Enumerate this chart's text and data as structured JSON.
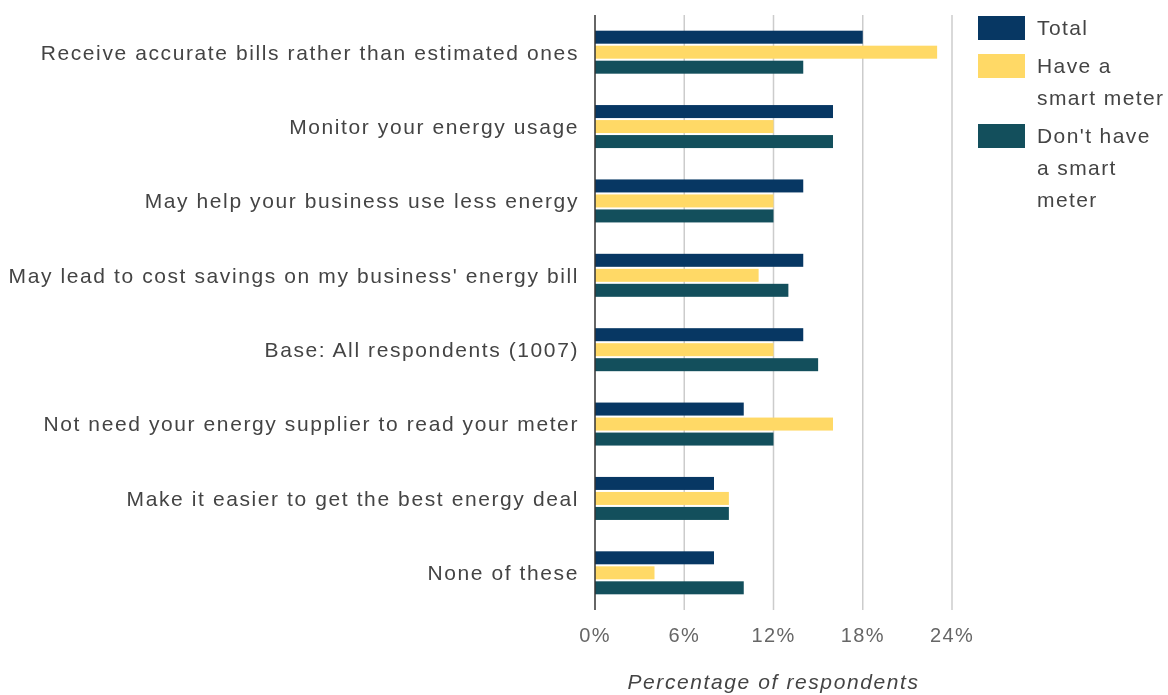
{
  "chart_data": {
    "type": "bar",
    "orientation": "horizontal",
    "categories": [
      "Receive accurate bills rather than estimated ones",
      "Monitor your energy usage",
      "May help your business use less energy",
      "May lead to cost savings on my business' energy bill",
      "Base: All respondents (1007)",
      "Not need your energy supplier to read your meter",
      "Make it easier to get the best energy deal",
      "None of these"
    ],
    "series": [
      {
        "name": "Total",
        "color": "#073763",
        "values": [
          18,
          16,
          14,
          14,
          14,
          10,
          8,
          8
        ]
      },
      {
        "name": "Have a smart meter",
        "color": "#ffd966",
        "values": [
          23,
          12,
          12,
          11,
          12,
          16,
          9,
          4
        ]
      },
      {
        "name": "Don't have a smart meter",
        "color": "#134f5c",
        "values": [
          14,
          16,
          12,
          13,
          15,
          12,
          9,
          10
        ]
      }
    ],
    "xlim": [
      0,
      24
    ],
    "xticks": [
      {
        "value": 0,
        "label": "0%"
      },
      {
        "value": 6,
        "label": "6%"
      },
      {
        "value": 12,
        "label": "12%"
      },
      {
        "value": 18,
        "label": "18%"
      },
      {
        "value": 24,
        "label": "24%"
      }
    ],
    "xlabel": "Percentage of respondents",
    "grid": "x",
    "legend": "top right"
  }
}
